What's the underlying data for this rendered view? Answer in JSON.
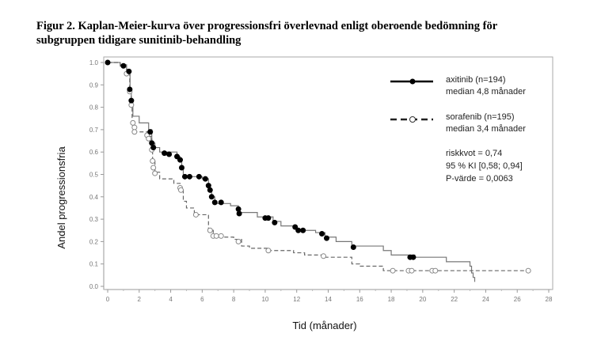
{
  "title_line1": "Figur 2. Kaplan-Meier-kurva över progressionsfri överlevnad enligt oberoende bedömning för",
  "title_line2": "subgruppen tidigare sunitinib-behandling",
  "chart_data": {
    "type": "line",
    "subtype": "kaplan-meier",
    "xlabel": "Tid (månader)",
    "ylabel": "Andel progressionsfria",
    "xlim": [
      0,
      28
    ],
    "ylim": [
      0,
      1.0
    ],
    "xticks": [
      0,
      2,
      4,
      6,
      8,
      10,
      12,
      14,
      16,
      18,
      20,
      22,
      24,
      26,
      28
    ],
    "yticks": [
      "0.0",
      "0.1",
      "0.2",
      "0.3",
      "0.4",
      "0.5",
      "0.6",
      "0.7",
      "0.8",
      "0.9",
      "1.0"
    ],
    "legend_position": "top-right",
    "series": [
      {
        "name": "axitinib (n=194)",
        "median": "median 4,8 månader",
        "color": "#000000",
        "dash": "solid",
        "steps": [
          [
            0,
            1.0
          ],
          [
            0.8,
            0.99
          ],
          [
            1.2,
            0.97
          ],
          [
            1.4,
            0.95
          ],
          [
            1.42,
            0.88
          ],
          [
            1.5,
            0.83
          ],
          [
            1.6,
            0.76
          ],
          [
            2.0,
            0.73
          ],
          [
            2.6,
            0.7
          ],
          [
            2.8,
            0.64
          ],
          [
            3.0,
            0.62
          ],
          [
            3.3,
            0.6
          ],
          [
            4.4,
            0.58
          ],
          [
            4.6,
            0.56
          ],
          [
            4.7,
            0.53
          ],
          [
            4.8,
            0.49
          ],
          [
            6.0,
            0.48
          ],
          [
            6.4,
            0.45
          ],
          [
            6.5,
            0.42
          ],
          [
            6.6,
            0.4
          ],
          [
            6.8,
            0.37
          ],
          [
            7.8,
            0.36
          ],
          [
            8.3,
            0.33
          ],
          [
            9.5,
            0.31
          ],
          [
            10.5,
            0.29
          ],
          [
            11.0,
            0.27
          ],
          [
            12.0,
            0.25
          ],
          [
            13.2,
            0.24
          ],
          [
            13.8,
            0.22
          ],
          [
            14.5,
            0.2
          ],
          [
            15.5,
            0.18
          ],
          [
            17.5,
            0.16
          ],
          [
            18.0,
            0.14
          ],
          [
            19.5,
            0.13
          ],
          [
            21.5,
            0.11
          ],
          [
            23.0,
            0.09
          ],
          [
            23.1,
            0.06
          ],
          [
            23.2,
            0.04
          ],
          [
            23.3,
            0.02
          ]
        ],
        "censored": [
          [
            0,
            1.0
          ],
          [
            1.0,
            0.985
          ],
          [
            1.35,
            0.96
          ],
          [
            1.4,
            0.88
          ],
          [
            1.5,
            0.83
          ],
          [
            2.7,
            0.69
          ],
          [
            2.8,
            0.64
          ],
          [
            2.9,
            0.62
          ],
          [
            3.6,
            0.595
          ],
          [
            3.9,
            0.59
          ],
          [
            4.4,
            0.58
          ],
          [
            4.6,
            0.565
          ],
          [
            4.7,
            0.53
          ],
          [
            4.9,
            0.49
          ],
          [
            5.2,
            0.49
          ],
          [
            5.8,
            0.49
          ],
          [
            6.2,
            0.48
          ],
          [
            6.4,
            0.45
          ],
          [
            6.5,
            0.43
          ],
          [
            6.6,
            0.4
          ],
          [
            6.8,
            0.375
          ],
          [
            7.2,
            0.375
          ],
          [
            8.3,
            0.345
          ],
          [
            8.35,
            0.325
          ],
          [
            10.0,
            0.305
          ],
          [
            10.2,
            0.305
          ],
          [
            10.6,
            0.285
          ],
          [
            11.9,
            0.265
          ],
          [
            12.1,
            0.25
          ],
          [
            12.4,
            0.25
          ],
          [
            13.6,
            0.235
          ],
          [
            13.9,
            0.215
          ],
          [
            15.6,
            0.175
          ],
          [
            19.2,
            0.13
          ],
          [
            19.4,
            0.13
          ]
        ]
      },
      {
        "name": "sorafenib (n=195)",
        "median": "median 3,4 månader",
        "color": "#555555",
        "dash": "dashed",
        "steps": [
          [
            0,
            1.0
          ],
          [
            0.8,
            0.98
          ],
          [
            1.2,
            0.95
          ],
          [
            1.4,
            0.87
          ],
          [
            1.5,
            0.81
          ],
          [
            1.55,
            0.74
          ],
          [
            1.65,
            0.69
          ],
          [
            2.6,
            0.67
          ],
          [
            2.8,
            0.61
          ],
          [
            2.85,
            0.56
          ],
          [
            3.0,
            0.51
          ],
          [
            3.3,
            0.48
          ],
          [
            4.2,
            0.46
          ],
          [
            4.6,
            0.43
          ],
          [
            4.8,
            0.38
          ],
          [
            5.0,
            0.35
          ],
          [
            5.5,
            0.32
          ],
          [
            6.4,
            0.25
          ],
          [
            6.7,
            0.22
          ],
          [
            8.0,
            0.21
          ],
          [
            8.5,
            0.18
          ],
          [
            9.0,
            0.17
          ],
          [
            10.2,
            0.16
          ],
          [
            11.8,
            0.15
          ],
          [
            12.5,
            0.14
          ],
          [
            13.8,
            0.13
          ],
          [
            15.5,
            0.1
          ],
          [
            16.0,
            0.09
          ],
          [
            17.5,
            0.07
          ],
          [
            26.7,
            0.07
          ]
        ],
        "censored": [
          [
            1.2,
            0.95
          ],
          [
            1.4,
            0.87
          ],
          [
            1.5,
            0.81
          ],
          [
            1.6,
            0.73
          ],
          [
            1.7,
            0.71
          ],
          [
            1.7,
            0.69
          ],
          [
            2.5,
            0.675
          ],
          [
            2.6,
            0.66
          ],
          [
            2.8,
            0.61
          ],
          [
            2.85,
            0.56
          ],
          [
            2.9,
            0.53
          ],
          [
            3.0,
            0.505
          ],
          [
            4.6,
            0.44
          ],
          [
            4.65,
            0.43
          ],
          [
            5.6,
            0.32
          ],
          [
            6.5,
            0.25
          ],
          [
            6.7,
            0.225
          ],
          [
            6.9,
            0.225
          ],
          [
            7.2,
            0.225
          ],
          [
            8.3,
            0.2
          ],
          [
            10.2,
            0.16
          ],
          [
            13.7,
            0.135
          ],
          [
            18.1,
            0.07
          ],
          [
            19.1,
            0.07
          ],
          [
            19.3,
            0.07
          ],
          [
            20.6,
            0.07
          ],
          [
            20.8,
            0.07
          ],
          [
            26.7,
            0.07
          ]
        ]
      }
    ],
    "annotations": [
      "riskkvot = 0,74",
      "95 % KI [0,58; 0,94]",
      "P-värde = 0,0063"
    ]
  }
}
